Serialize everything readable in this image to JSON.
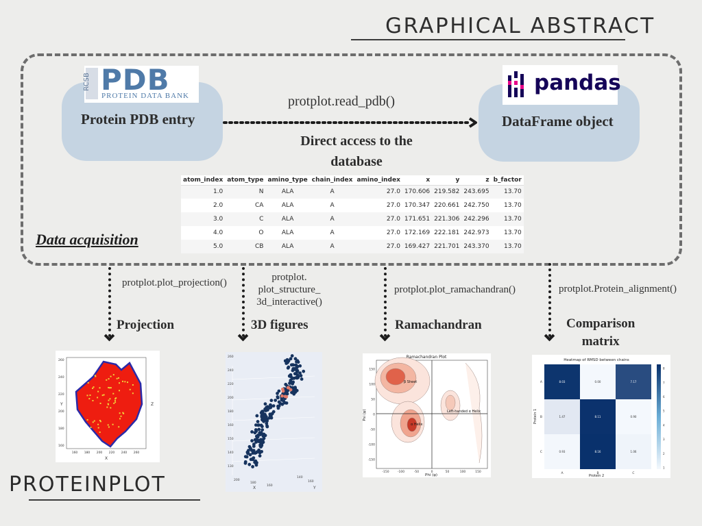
{
  "header": {
    "title": "GRAPHICAL ABSTRACT"
  },
  "source": {
    "logo_big": "PDB",
    "logo_side": "RCSB",
    "logo_small": "PROTEIN DATA BANK",
    "label": "Protein PDB entry"
  },
  "target": {
    "logo_word": "pandas",
    "label": "DataFrame object"
  },
  "read": {
    "function": "protplot.read_pdb()",
    "caption_line1": "Direct access to the",
    "caption_line2": "database"
  },
  "dataframe": {
    "columns": [
      "atom_index",
      "atom_type",
      "amino_type",
      "chain_index",
      "amino_index",
      "x",
      "y",
      "z",
      "b_factor"
    ],
    "rows": [
      [
        "1.0",
        "N",
        "ALA",
        "A",
        "27.0",
        "170.606",
        "219.582",
        "243.695",
        "13.70"
      ],
      [
        "2.0",
        "CA",
        "ALA",
        "A",
        "27.0",
        "170.347",
        "220.661",
        "242.750",
        "13.70"
      ],
      [
        "3.0",
        "C",
        "ALA",
        "A",
        "27.0",
        "171.651",
        "221.306",
        "242.296",
        "13.70"
      ],
      [
        "4.0",
        "O",
        "ALA",
        "A",
        "27.0",
        "172.169",
        "222.181",
        "242.973",
        "13.70"
      ],
      [
        "5.0",
        "CB",
        "ALA",
        "A",
        "27.0",
        "169.427",
        "221.701",
        "243.370",
        "13.70"
      ]
    ]
  },
  "acquisition_label": "Data acquisition",
  "outputs": {
    "projection": {
      "function": "protplot.plot_projection()",
      "label": "Projection"
    },
    "figures3d": {
      "function_line1": "protplot.",
      "function_line2": "plot_structure_",
      "function_line3": "3d_interactive()",
      "label": "3D figures"
    },
    "ramachandran": {
      "function": "protplot.plot_ramachandran()",
      "label": "Ramachandran"
    },
    "comparison": {
      "function": "protplot.Protein_alignment()",
      "label_line1": "Comparison",
      "label_line2": "matrix"
    }
  },
  "projection_plot": {
    "xlabel": "X",
    "ylabel": "Y",
    "side_label": "Z",
    "xticks": [
      "160",
      "180",
      "200",
      "220",
      "240",
      "260"
    ],
    "yticks": [
      "260",
      "240",
      "220",
      "200",
      "180",
      "160"
    ],
    "colors": {
      "fill": "#ee1d10",
      "edge": "#2a2aa8",
      "marks": "#f0d23a"
    }
  },
  "structure_plot": {
    "zticks": [
      "260",
      "240",
      "220",
      "200",
      "180",
      "160",
      "150",
      "140",
      "130"
    ],
    "xticks": [
      "200",
      "180",
      "160"
    ],
    "yticks": [
      "140",
      "160"
    ],
    "xlabel": "X",
    "ylabel": "Y",
    "colors": {
      "atoms": "#16335e",
      "highlight": "#e07a6a"
    }
  },
  "rama_plot": {
    "title": "Ramachandran Plot",
    "xlabel": "Phi (φ)",
    "ylabel": "Psi (ψ)",
    "xticks": [
      "-150",
      "-100",
      "-50",
      "0",
      "50",
      "100",
      "150"
    ],
    "yticks": [
      "150",
      "100",
      "50",
      "0",
      "-50",
      "-100",
      "-150"
    ],
    "region_labels": [
      "β Sheet",
      "α Helix",
      "Left-handed α Helix"
    ]
  },
  "chart_data": {
    "type": "heatmap",
    "title": "Heatmap of RMSD between chains",
    "xlabel": "Protein 2",
    "ylabel": "Protein 1",
    "x_categories": [
      "A",
      "B",
      "C"
    ],
    "y_categories": [
      "A",
      "B",
      "C"
    ],
    "values": [
      [
        8.03,
        0.0,
        7.17
      ],
      [
        1.47,
        8.11,
        0.9
      ],
      [
        0.93,
        8.16,
        1.06
      ]
    ],
    "colorbar_ticks": [
      "8",
      "7",
      "6",
      "5",
      "4",
      "3",
      "2",
      "1"
    ],
    "colorscale": [
      "#f4f8fd",
      "#08306b"
    ]
  },
  "footer": {
    "brand": "PROTEINPLOT"
  }
}
